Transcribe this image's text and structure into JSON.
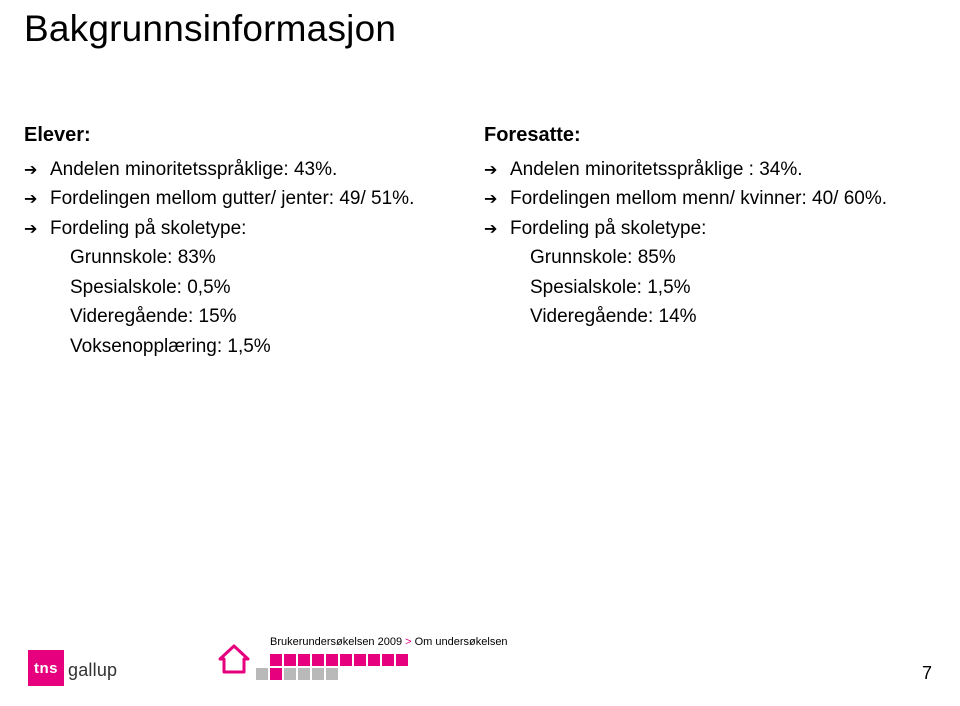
{
  "title": "Bakgrunnsinformasjon",
  "colors": {
    "magenta": "#e6007e",
    "grey": "#b9b9b9",
    "black": "#000000",
    "white": "#ffffff"
  },
  "left": {
    "header": "Elever:",
    "items": [
      {
        "text": "Andelen minoritetsspråklige: 43%."
      },
      {
        "text": "Fordelingen mellom gutter/ jenter: 49/ 51%."
      },
      {
        "text": "Fordeling på skoletype:",
        "sub": [
          "Grunnskole: 83%",
          "Spesialskole: 0,5%",
          "Videregående: 15%",
          "Voksenopplæring: 1,5%"
        ]
      }
    ]
  },
  "right": {
    "header": "Foresatte:",
    "items": [
      {
        "text": "Andelen minoritetsspråklige : 34%."
      },
      {
        "text": "Fordelingen mellom menn/ kvinner: 40/ 60%."
      },
      {
        "text": "Fordeling på skoletype:",
        "sub": [
          "Grunnskole: 85%",
          "Spesialskole: 1,5%",
          "Videregående: 14%"
        ]
      }
    ]
  },
  "footer": {
    "breadcrumb_a": "Brukerundersøkelsen 2009",
    "breadcrumb_sep": " > ",
    "breadcrumb_b": "Om undersøkelsen",
    "squares_row1": [
      "#e6007e",
      "#e6007e",
      "#e6007e",
      "#e6007e",
      "#e6007e",
      "#e6007e",
      "#e6007e",
      "#e6007e",
      "#e6007e",
      "#e6007e"
    ],
    "squares_row2": [
      "#b9b9b9",
      "#e6007e",
      "#b9b9b9",
      "#b9b9b9",
      "#b9b9b9",
      "#b9b9b9"
    ],
    "logo_box": "tns",
    "logo_text": "gallup",
    "page": "7"
  }
}
